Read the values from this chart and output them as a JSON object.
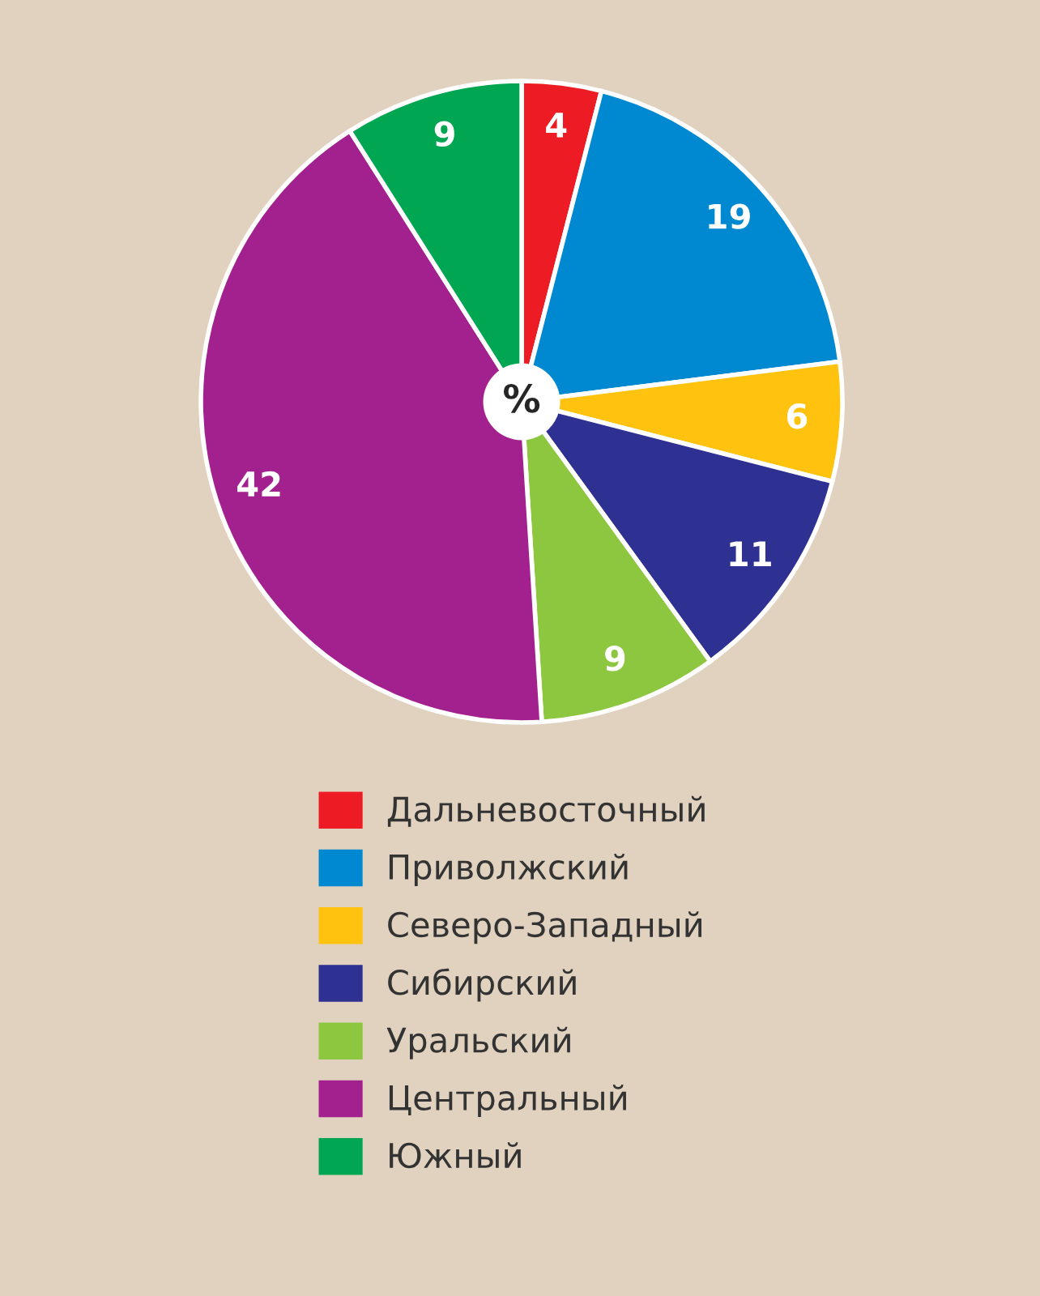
{
  "chart_data": {
    "type": "pie",
    "categories": [
      "Дальневосточный",
      "Приволжский",
      "Северо-Западный",
      "Сибирский",
      "Уральский",
      "Центральный",
      "Южный"
    ],
    "values": [
      4,
      19,
      6,
      11,
      9,
      42,
      9
    ],
    "colors": [
      "#ed1c24",
      "#0088d1",
      "#ffc20e",
      "#2e3192",
      "#8dc63f",
      "#a3218e",
      "#00a651"
    ],
    "data_labels": true,
    "legend": "bottom",
    "annotations": [
      "%"
    ]
  }
}
